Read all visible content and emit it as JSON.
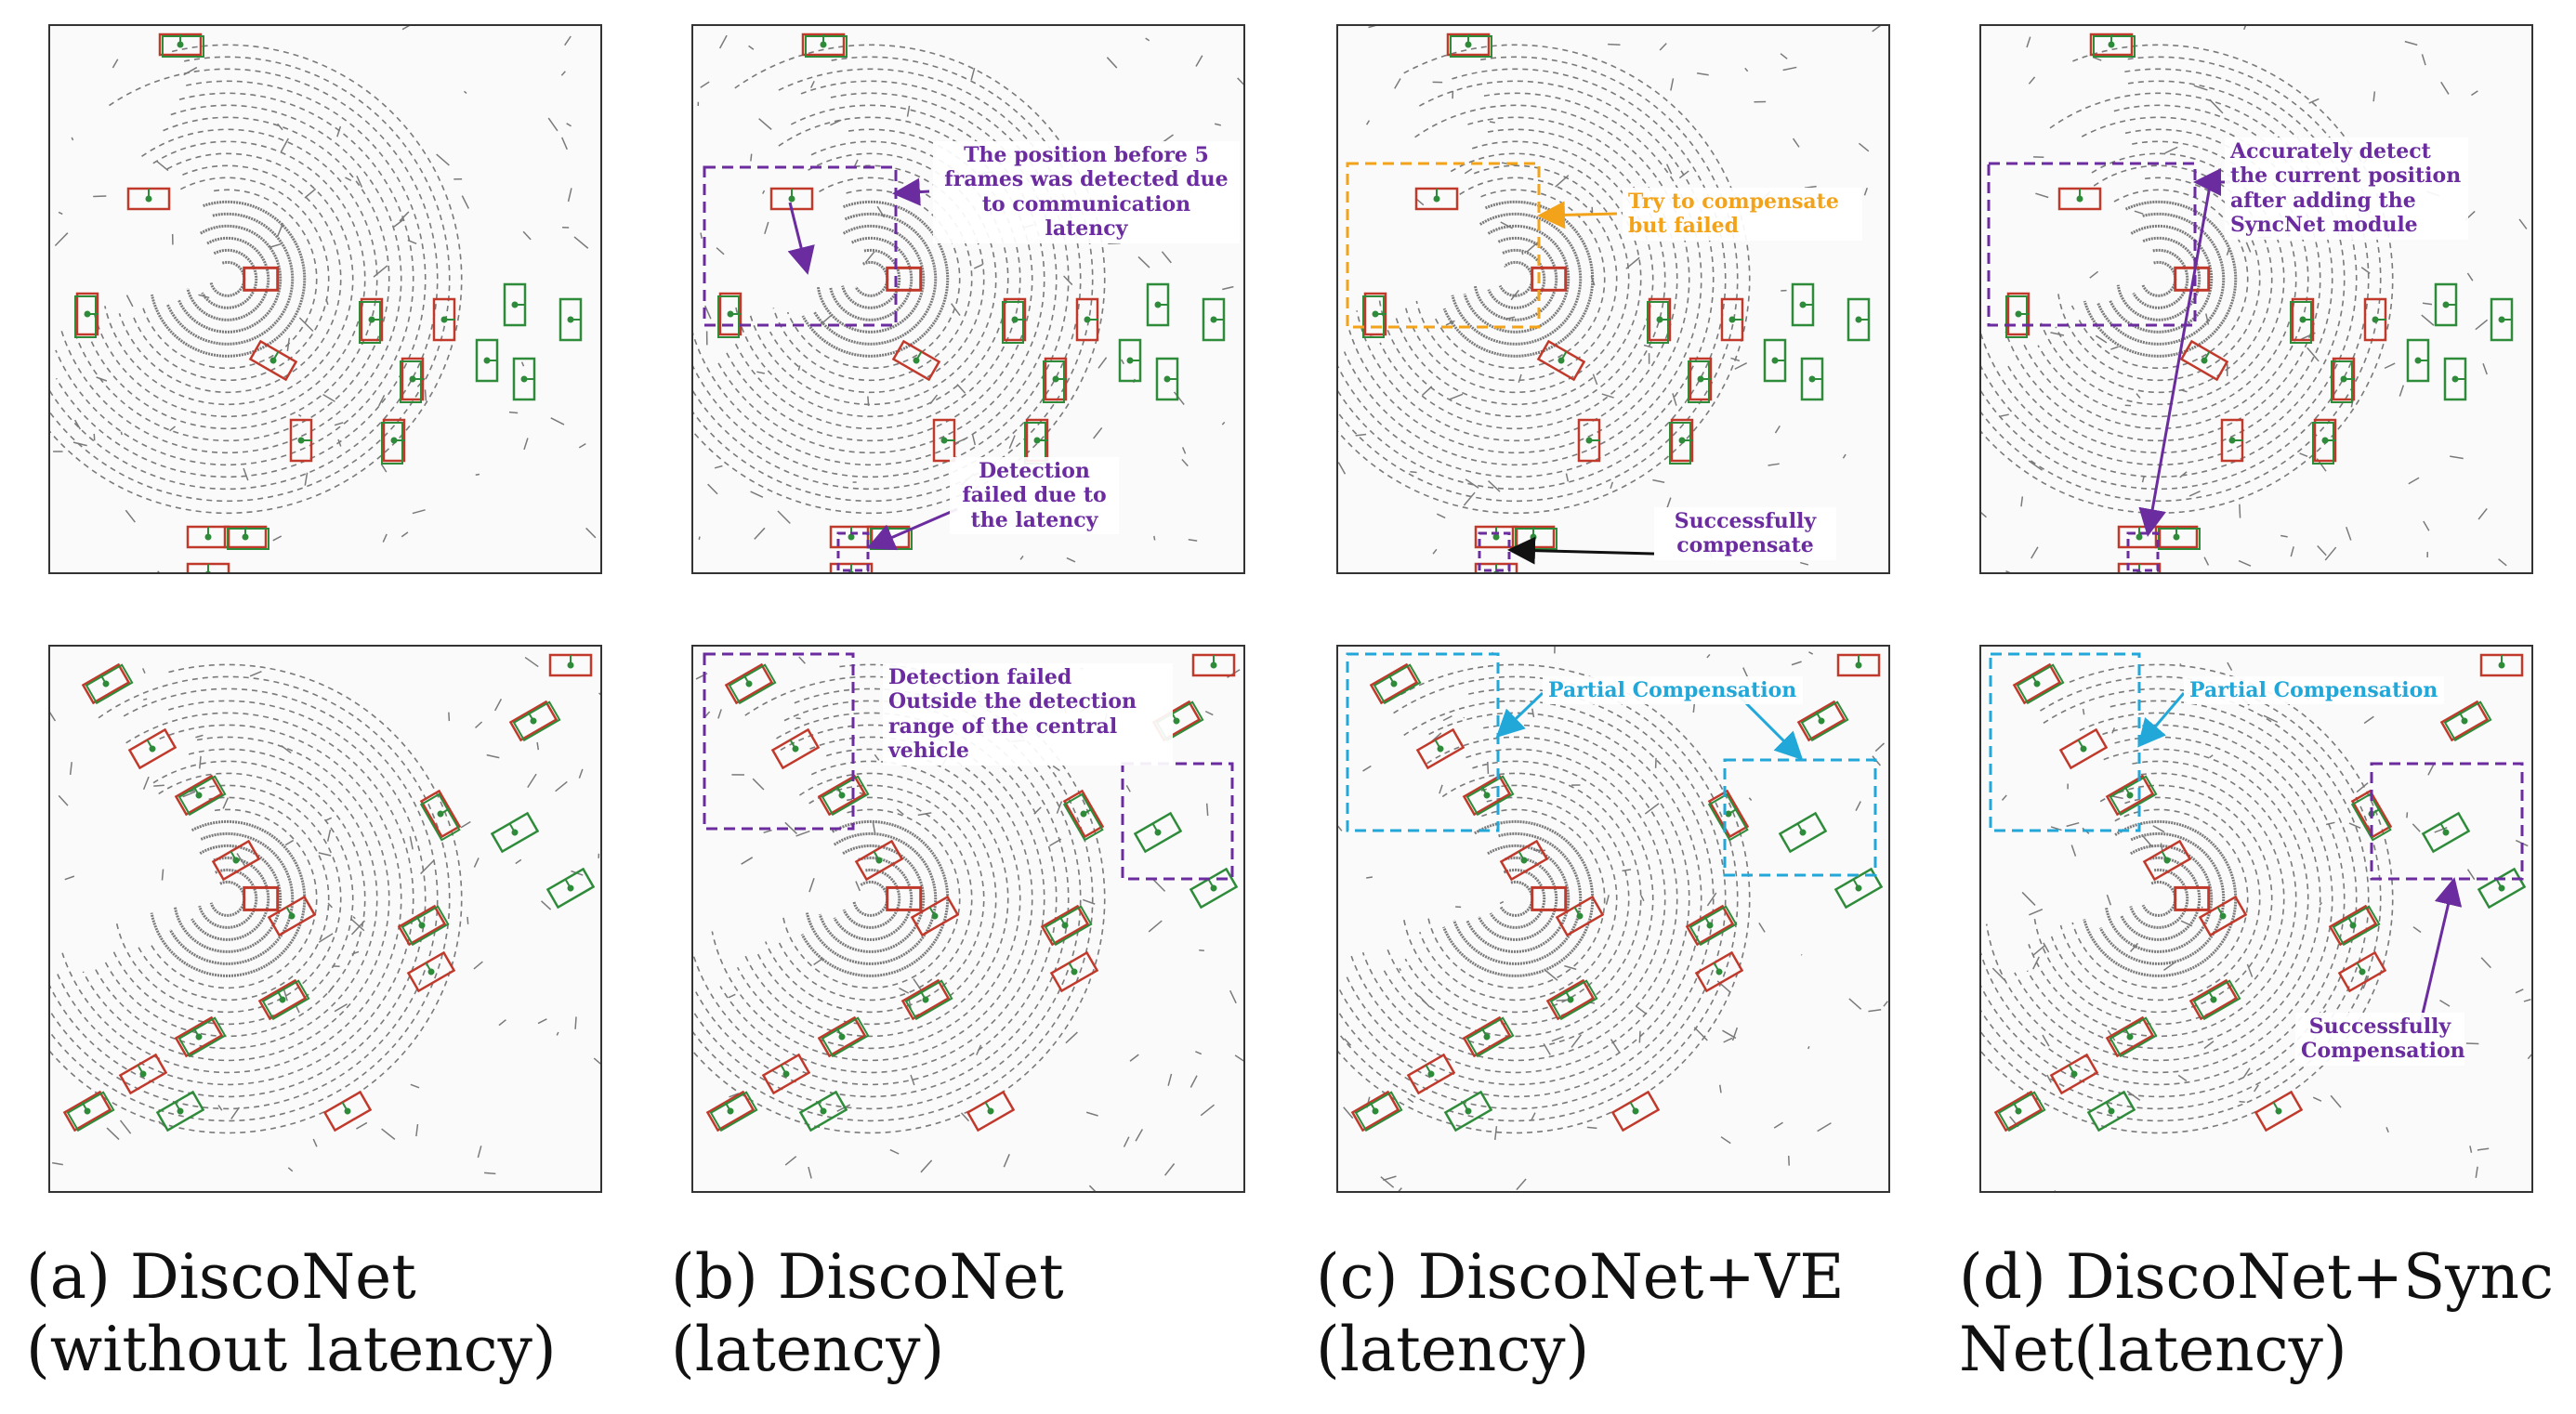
{
  "captions": [
    {
      "line1": "(a) DiscoNet",
      "line2": "(without latency)"
    },
    {
      "line1": "(b) DiscoNet",
      "line2": "(latency)"
    },
    {
      "line1": "(c) DiscoNet+VE",
      "line2": "(latency)"
    },
    {
      "line1": "(d) DiscoNet+Sync",
      "line2": "Net(latency)"
    }
  ],
  "annotations": {
    "b_top_position": "The position before 5 frames was detected due to communication latency",
    "b_top_failed": "Detection failed due to the latency",
    "c_top_try": "Try to compensate but failed",
    "c_top_success": "Successfully compensate",
    "d_top_accurate": "Accurately detect the current position after adding the SyncNet module",
    "b_bottom_outside": "Detection failed Outside the detection range of the central vehicle",
    "c_bottom_partial": "Partial Compensation",
    "d_bottom_partial": "Partial Compensation",
    "d_bottom_success": "Successfully Compensation"
  },
  "colors": {
    "prediction_box": "#c0392b",
    "ground_truth_box": "#2e8b3a",
    "highlight_purple": "#6a2c9e",
    "highlight_orange": "#f2a31a",
    "highlight_cyan": "#22a7d9",
    "point_cloud": "#7a7a7a"
  }
}
